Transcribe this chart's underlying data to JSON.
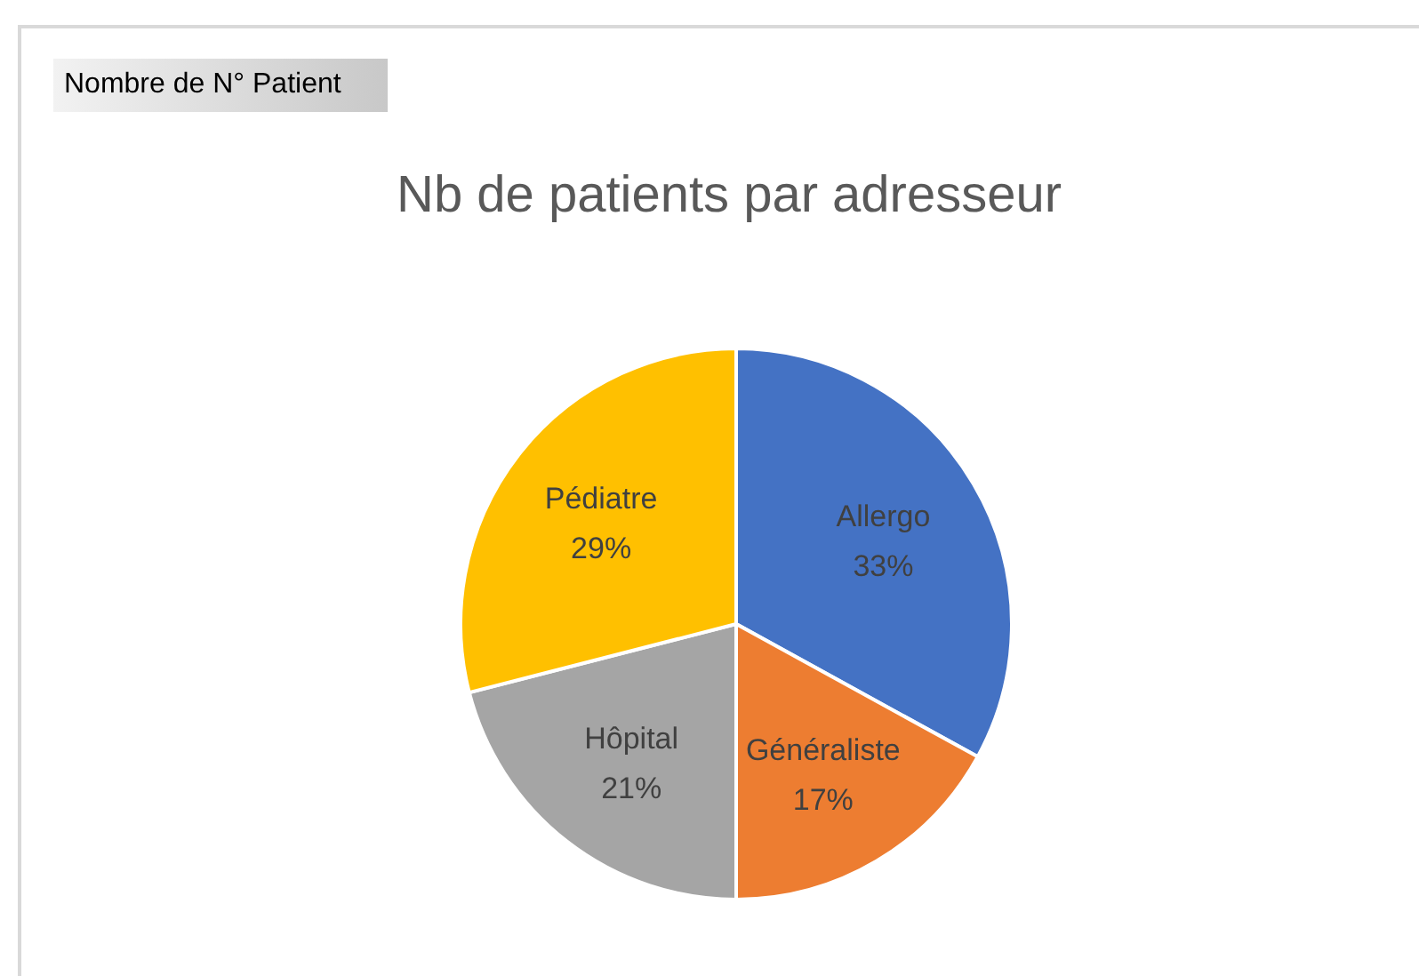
{
  "chart_data": {
    "type": "pie",
    "title": "Nb de patients par adresseur",
    "categories": [
      "Allergo",
      "Généraliste",
      "Hôpital",
      "Pédiatre"
    ],
    "values": [
      33,
      17,
      21,
      29
    ],
    "value_labels": [
      "33%",
      "17%",
      "21%",
      "29%"
    ],
    "colors": [
      "#4472c4",
      "#ed7d31",
      "#a5a5a5",
      "#ffc000"
    ],
    "annotations": [
      "Nombre de N° Patient"
    ],
    "legend": false
  }
}
